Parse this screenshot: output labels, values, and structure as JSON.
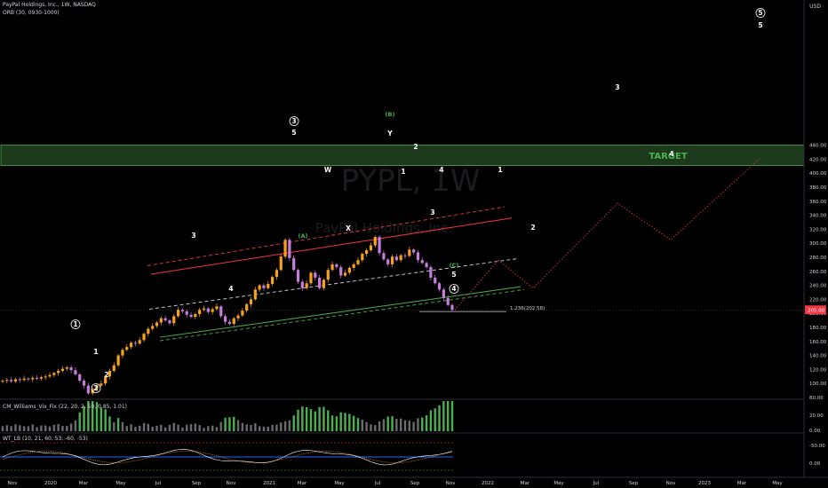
{
  "header": {
    "symbol_line": "PayPal Holdings, Inc., 1W, NASDAQ",
    "indicator_line": "ORB (30, 0930-1000)",
    "currency": "USD",
    "watermark_symbol": "PYPL, 1W",
    "watermark_name": "PayPal Holdings, Inc."
  },
  "target": {
    "label": "TARGET",
    "low": 411,
    "high": 440,
    "color": "#4caf50"
  },
  "price_axis": {
    "ticks": [
      "440.00",
      "420.00",
      "400.00",
      "380.00",
      "360.00",
      "340.00",
      "320.00",
      "300.00",
      "280.00",
      "260.00",
      "240.00",
      "220.00",
      "200.00",
      "180.00",
      "160.00",
      "140.00",
      "120.00",
      "100.00",
      "80.00"
    ],
    "last_price": "205.00"
  },
  "time_axis": {
    "ticks": [
      "Nov",
      "2020",
      "Mar",
      "May",
      "Jul",
      "Sep",
      "Nov",
      "2021",
      "Mar",
      "May",
      "Jul",
      "Sep",
      "Nov",
      "2022",
      "Mar",
      "May",
      "Jul",
      "Sep",
      "Nov",
      "2023",
      "Mar",
      "May"
    ]
  },
  "fib_label": "1.236(202.58)",
  "wave_labels": [
    {
      "text": "1",
      "circled": true,
      "color": "#ffffff"
    },
    {
      "text": "2",
      "circled": true,
      "color": "#ffffff"
    },
    {
      "text": "2",
      "circled": false,
      "color": "#ffffff"
    },
    {
      "text": "1",
      "circled": false,
      "color": "#ffffff"
    },
    {
      "text": "3",
      "circled": false,
      "color": "#ffffff"
    },
    {
      "text": "4",
      "circled": false,
      "color": "#ffffff"
    },
    {
      "text": "3",
      "circled": true,
      "color": "#ffffff"
    },
    {
      "text": "5",
      "circled": false,
      "color": "#ffffff"
    },
    {
      "text": "(A)",
      "circled": false,
      "color": "#4caf50"
    },
    {
      "text": "W",
      "circled": false,
      "color": "#ffffff"
    },
    {
      "text": "X",
      "circled": false,
      "color": "#ffffff"
    },
    {
      "text": "(B)",
      "circled": false,
      "color": "#4caf50"
    },
    {
      "text": "Y",
      "circled": false,
      "color": "#ffffff"
    },
    {
      "text": "1",
      "circled": false,
      "color": "#ffffff"
    },
    {
      "text": "2",
      "circled": false,
      "color": "#ffffff"
    },
    {
      "text": "3",
      "circled": false,
      "color": "#ffffff"
    },
    {
      "text": "4",
      "circled": false,
      "color": "#ffffff"
    },
    {
      "text": "5",
      "circled": false,
      "color": "#ffffff"
    },
    {
      "text": "(C)",
      "circled": false,
      "color": "#4caf50"
    },
    {
      "text": "4",
      "circled": true,
      "color": "#ffffff"
    },
    {
      "text": "1",
      "circled": false,
      "color": "#ffffff"
    },
    {
      "text": "2",
      "circled": false,
      "color": "#ffffff"
    },
    {
      "text": "3",
      "circled": false,
      "color": "#ffffff"
    },
    {
      "text": "4",
      "circled": false,
      "color": "#ffffff"
    },
    {
      "text": "5",
      "circled": true,
      "color": "#ffffff"
    },
    {
      "text": "5",
      "circled": false,
      "color": "#ffffff"
    }
  ],
  "indicator1": {
    "label": "CM_Williams_Vix_Fix (22, 20, 2, 50, 0.85, 1.01)",
    "ticks": [
      "20.00",
      "0.00"
    ]
  },
  "indicator2": {
    "label": "WT_LB (10, 21, 60, 53, -60, -53)",
    "ticks": [
      "-50.00",
      "0.00"
    ]
  },
  "colors": {
    "up": "#f7a21b",
    "down": "#c77ddb",
    "red_channel": "#f23645",
    "green_channel": "#4caf50",
    "projection": "#f23645"
  },
  "chart_data": {
    "type": "candlestick",
    "title": "PayPal Holdings, Inc., 1W, NASDAQ",
    "ylim": [
      70,
      440
    ],
    "weekly_closes": [
      104,
      105,
      103,
      106,
      105,
      107,
      106,
      108,
      107,
      109,
      110,
      112,
      115,
      118,
      121,
      123,
      119,
      113,
      104,
      97,
      86,
      92,
      97,
      100,
      110,
      118,
      126,
      140,
      148,
      152,
      158,
      157,
      162,
      171,
      178,
      182,
      187,
      193,
      190,
      186,
      196,
      205,
      203,
      198,
      195,
      199,
      205,
      207,
      202,
      206,
      210,
      196,
      188,
      185,
      193,
      197,
      204,
      213,
      220,
      234,
      240,
      236,
      242,
      252,
      262,
      281,
      305,
      279,
      262,
      245,
      236,
      243,
      258,
      251,
      236,
      248,
      262,
      270,
      266,
      254,
      258,
      265,
      270,
      276,
      285,
      290,
      297,
      309,
      286,
      277,
      270,
      281,
      276,
      283,
      282,
      291,
      287,
      276,
      272,
      266,
      251,
      243,
      234,
      222,
      212,
      205
    ]
  }
}
